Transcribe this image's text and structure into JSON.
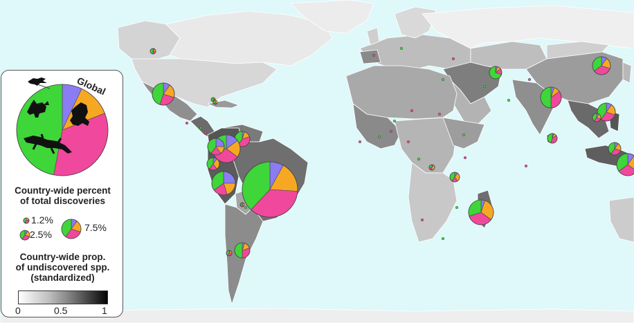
{
  "legend": {
    "global_label": "Global",
    "title_lines": [
      "Country-wide percent",
      "of total discoveries"
    ],
    "size_labels": [
      "1.2%",
      "2.5%",
      "7.5%"
    ],
    "gradient_title_lines": [
      "Country-wide prop.",
      "of undiscovered spp.",
      "(standardized)"
    ],
    "gradient_ticks": [
      "0",
      "0.5",
      "1"
    ],
    "gradient_range": [
      0,
      1
    ],
    "icons": [
      "bird-icon",
      "mammal-icon",
      "frog-icon",
      "lizard-icon"
    ]
  },
  "colors": {
    "ocean": "#dff8fa",
    "bird": "#8a7cf2",
    "mammal": "#f7a823",
    "amphibian": "#f0489c",
    "reptile": "#3fd63a",
    "border": "#ffffff"
  },
  "chart_data": {
    "type": "pie",
    "series_order": [
      "bird",
      "mammal",
      "amphibian",
      "reptile"
    ],
    "global_pie": [
      7,
      12,
      34,
      47
    ]
  }
}
